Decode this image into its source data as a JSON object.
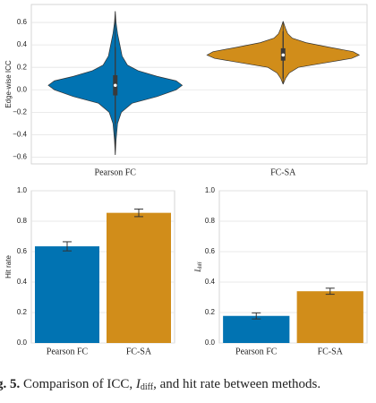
{
  "chart_data": [
    {
      "type": "violin",
      "ylabel": "Edge-wise ICC",
      "categories": [
        "Pearson FC",
        "FC-SA"
      ],
      "ylim": [
        -0.66,
        0.76
      ],
      "yticks": [
        {
          "value": -0.6,
          "label": "−0.6"
        },
        {
          "value": -0.4,
          "label": "−0.4"
        },
        {
          "value": -0.2,
          "label": "−0.2"
        },
        {
          "value": 0,
          "label": "0.0"
        },
        0.2,
        0.4,
        0.6
      ],
      "grid": true,
      "series": [
        {
          "color": "#0173b2",
          "density_y": [
            -0.58,
            -0.45,
            -0.3,
            -0.2,
            -0.12,
            -0.06,
            0,
            0.04,
            0.08,
            0.12,
            0.17,
            0.22,
            0.3,
            0.4,
            0.5,
            0.6,
            0.7
          ],
          "density": [
            0,
            0.01,
            0.03,
            0.08,
            0.22,
            0.55,
            0.8,
            0.88,
            0.8,
            0.55,
            0.3,
            0.16,
            0.09,
            0.06,
            0.03,
            0.01,
            0
          ],
          "whisker_low": -0.3,
          "q1": -0.05,
          "median": 0.04,
          "q3": 0.13,
          "whisker_high": 0.38
        },
        {
          "color": "#d18d1a",
          "density_y": [
            0.05,
            0.1,
            0.15,
            0.2,
            0.24,
            0.28,
            0.31,
            0.34,
            0.38,
            0.42,
            0.46,
            0.5,
            0.55,
            0.61
          ],
          "density": [
            0,
            0.03,
            0.08,
            0.2,
            0.55,
            0.9,
            1.0,
            0.92,
            0.6,
            0.3,
            0.12,
            0.06,
            0.03,
            0
          ],
          "whisker_low": 0.1,
          "q1": 0.26,
          "median": 0.31,
          "q3": 0.37,
          "whisker_high": 0.52
        }
      ]
    },
    {
      "type": "bar",
      "ylabel": "Hit rate",
      "categories": [
        "Pearson FC",
        "FC-SA"
      ],
      "colors": [
        "#0173b2",
        "#d18d1a"
      ],
      "values": [
        0.635,
        0.855
      ],
      "errors": [
        0.03,
        0.025
      ],
      "ylim": [
        0,
        1
      ],
      "yticks": [
        {
          "value": 0,
          "label": "0.0"
        },
        0.2,
        0.4,
        0.6,
        0.8,
        {
          "value": 1,
          "label": "1.0"
        }
      ],
      "grid": true
    },
    {
      "type": "bar",
      "ylabel": {
        "text": "I",
        "sub": "diff"
      },
      "categories": [
        "Pearson FC",
        "FC-SA"
      ],
      "colors": [
        "#0173b2",
        "#d18d1a"
      ],
      "values": [
        0.178,
        0.34
      ],
      "errors": [
        0.02,
        0.02
      ],
      "ylim": [
        0,
        1
      ],
      "yticks": [
        {
          "value": 0,
          "label": "0.0"
        },
        0.2,
        0.4,
        0.6,
        0.8,
        {
          "value": 1,
          "label": "1.0"
        }
      ],
      "grid": true
    }
  ],
  "caption": {
    "label": "g. 5.",
    "text1": " Comparison of ICC, ",
    "var": "I",
    "var_sub": "diff",
    "text2": ", and hit rate between methods."
  }
}
